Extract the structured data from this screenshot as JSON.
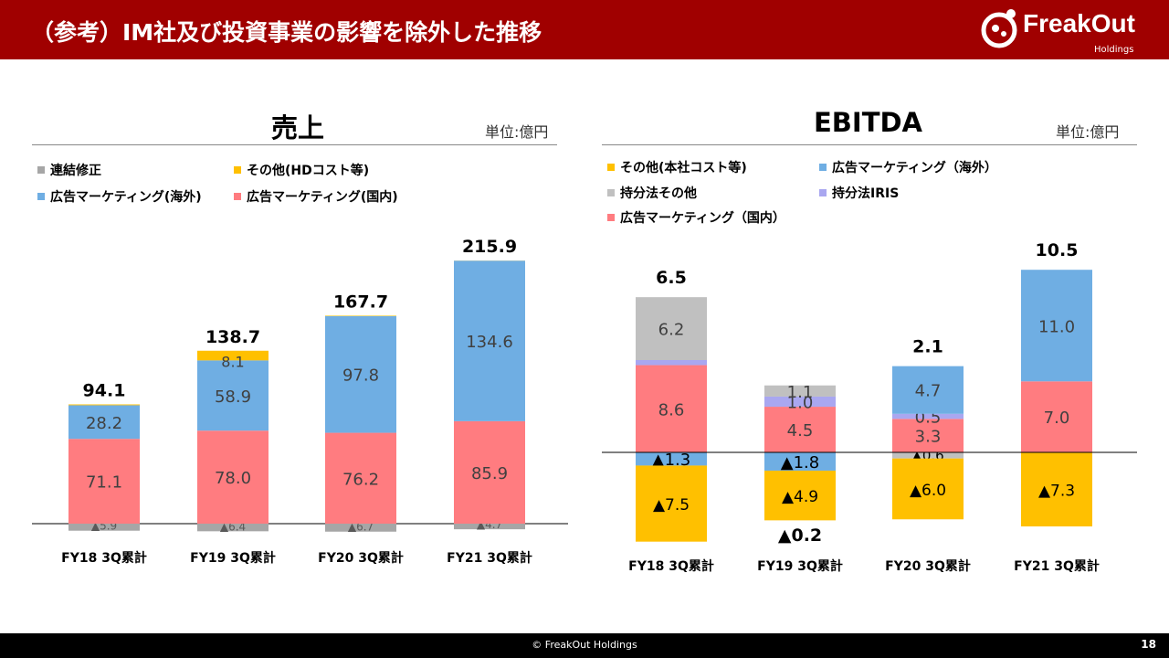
{
  "header": {
    "title": "（参考）IM社及び投資事業の影響を除外した推移",
    "logo_text": "FreakOut",
    "logo_sub": "Holdings"
  },
  "footer": {
    "copyright": "© FreakOut Holdings",
    "page": "18"
  },
  "colors": {
    "header_bg": "#a00000",
    "domestic": "#ff7c80",
    "overseas": "#6faee3",
    "other": "#ffc000",
    "consolidation": "#a6a6a6",
    "equity_other": "#c0c0c0",
    "equity_iris": "#a9a7f0"
  },
  "chart_data": [
    {
      "type": "bar",
      "stacked": true,
      "title": "売上",
      "unit_label": "単位:億円",
      "categories": [
        "FY18 3Q累計",
        "FY19 3Q累計",
        "FY20 3Q累計",
        "FY21 3Q累計"
      ],
      "legend": [
        {
          "name": "連結修正",
          "color": "#a6a6a6"
        },
        {
          "name": "その他(HDコスト等)",
          "color": "#ffc000"
        },
        {
          "name": "広告マーケティング(海外)",
          "color": "#6faee3"
        },
        {
          "name": "広告マーケティング(国内)",
          "color": "#ff7c80"
        }
      ],
      "series": [
        {
          "name": "連結修正",
          "values": [
            -5.9,
            -6.4,
            -6.7,
            -4.7
          ],
          "labels": [
            "▲5.9",
            "▲6.4",
            "▲6.7",
            "▲4.7"
          ]
        },
        {
          "name": "広告マーケティング(国内)",
          "values": [
            71.1,
            78.0,
            76.2,
            85.9
          ],
          "labels": [
            "71.1",
            "78.0",
            "76.2",
            "85.9"
          ]
        },
        {
          "name": "広告マーケティング(海外)",
          "values": [
            28.2,
            58.9,
            97.8,
            134.6
          ],
          "labels": [
            "28.2",
            "58.9",
            "97.8",
            "134.6"
          ]
        },
        {
          "name": "その他(HDコスト等)",
          "values": [
            0.7,
            8.1,
            0.4,
            0.1
          ],
          "labels": [
            "",
            "8.1",
            "",
            ""
          ]
        }
      ],
      "totals": [
        "94.1",
        "138.7",
        "167.7",
        "215.9"
      ]
    },
    {
      "type": "bar",
      "stacked": true,
      "title": "EBITDA",
      "unit_label": "単位:億円",
      "categories": [
        "FY18 3Q累計",
        "FY19 3Q累計",
        "FY20 3Q累計",
        "FY21 3Q累計"
      ],
      "legend": [
        {
          "name": "その他(本社コスト等)",
          "color": "#ffc000"
        },
        {
          "name": "広告マーケティング（海外）",
          "color": "#6faee3"
        },
        {
          "name": "持分法その他",
          "color": "#c0c0c0"
        },
        {
          "name": "持分法IRIS",
          "color": "#a9a7f0"
        },
        {
          "name": "広告マーケティング（国内）",
          "color": "#ff7c80"
        }
      ],
      "series": [
        {
          "name": "広告マーケティング（海外）",
          "values": [
            -1.3,
            -1.8,
            4.7,
            11.0
          ],
          "labels": [
            "▲1.3",
            "▲1.8",
            "4.7",
            "11.0"
          ]
        },
        {
          "name": "その他(本社コスト等)",
          "values": [
            -7.5,
            -4.9,
            -6.0,
            -7.3
          ],
          "labels": [
            "▲7.5",
            "▲4.9",
            "▲6.0",
            "▲7.3"
          ]
        },
        {
          "name": "持分法その他",
          "values": [
            6.2,
            1.1,
            -0.6,
            0
          ],
          "labels": [
            "6.2",
            "1.1",
            "▲0.6",
            ""
          ]
        },
        {
          "name": "広告マーケティング（国内）",
          "values": [
            8.6,
            4.5,
            3.3,
            7.0
          ],
          "labels": [
            "8.6",
            "4.5",
            "3.3",
            "7.0"
          ]
        },
        {
          "name": "持分法IRIS",
          "values": [
            0.5,
            1.0,
            0.5,
            0
          ],
          "labels": [
            "",
            "1.0",
            "0.5",
            ""
          ]
        }
      ],
      "totals": [
        "6.5",
        "▲0.2",
        "2.1",
        "10.5"
      ]
    }
  ]
}
